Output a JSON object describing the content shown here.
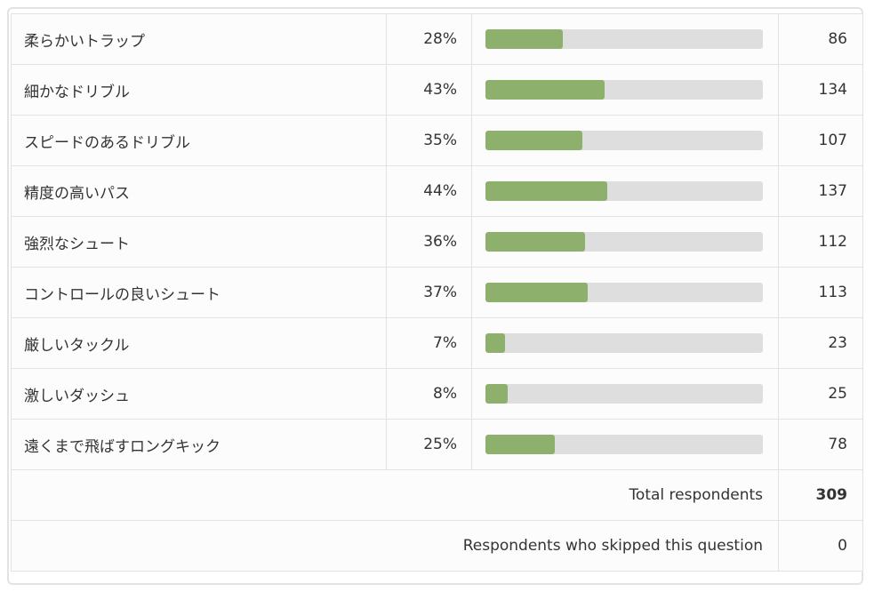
{
  "table": {
    "rows": [
      {
        "label": "柔らかいトラップ",
        "percent": 28,
        "percent_label": "28%",
        "count": 86
      },
      {
        "label": "細かなドリブル",
        "percent": 43,
        "percent_label": "43%",
        "count": 134
      },
      {
        "label": "スピードのあるドリブル",
        "percent": 35,
        "percent_label": "35%",
        "count": 107
      },
      {
        "label": "精度の高いパス",
        "percent": 44,
        "percent_label": "44%",
        "count": 137
      },
      {
        "label": "強烈なシュート",
        "percent": 36,
        "percent_label": "36%",
        "count": 112
      },
      {
        "label": "コントロールの良いシュート",
        "percent": 37,
        "percent_label": "37%",
        "count": 113
      },
      {
        "label": "厳しいタックル",
        "percent": 7,
        "percent_label": "7%",
        "count": 23
      },
      {
        "label": "激しいダッシュ",
        "percent": 8,
        "percent_label": "8%",
        "count": 25
      },
      {
        "label": "遠くまで飛ばすロングキック",
        "percent": 25,
        "percent_label": "25%",
        "count": 78
      }
    ],
    "footer": [
      {
        "label": "Total respondents",
        "count": 309,
        "bold": true
      },
      {
        "label": "Respondents who skipped this question",
        "count": 0,
        "bold": false
      }
    ]
  }
}
